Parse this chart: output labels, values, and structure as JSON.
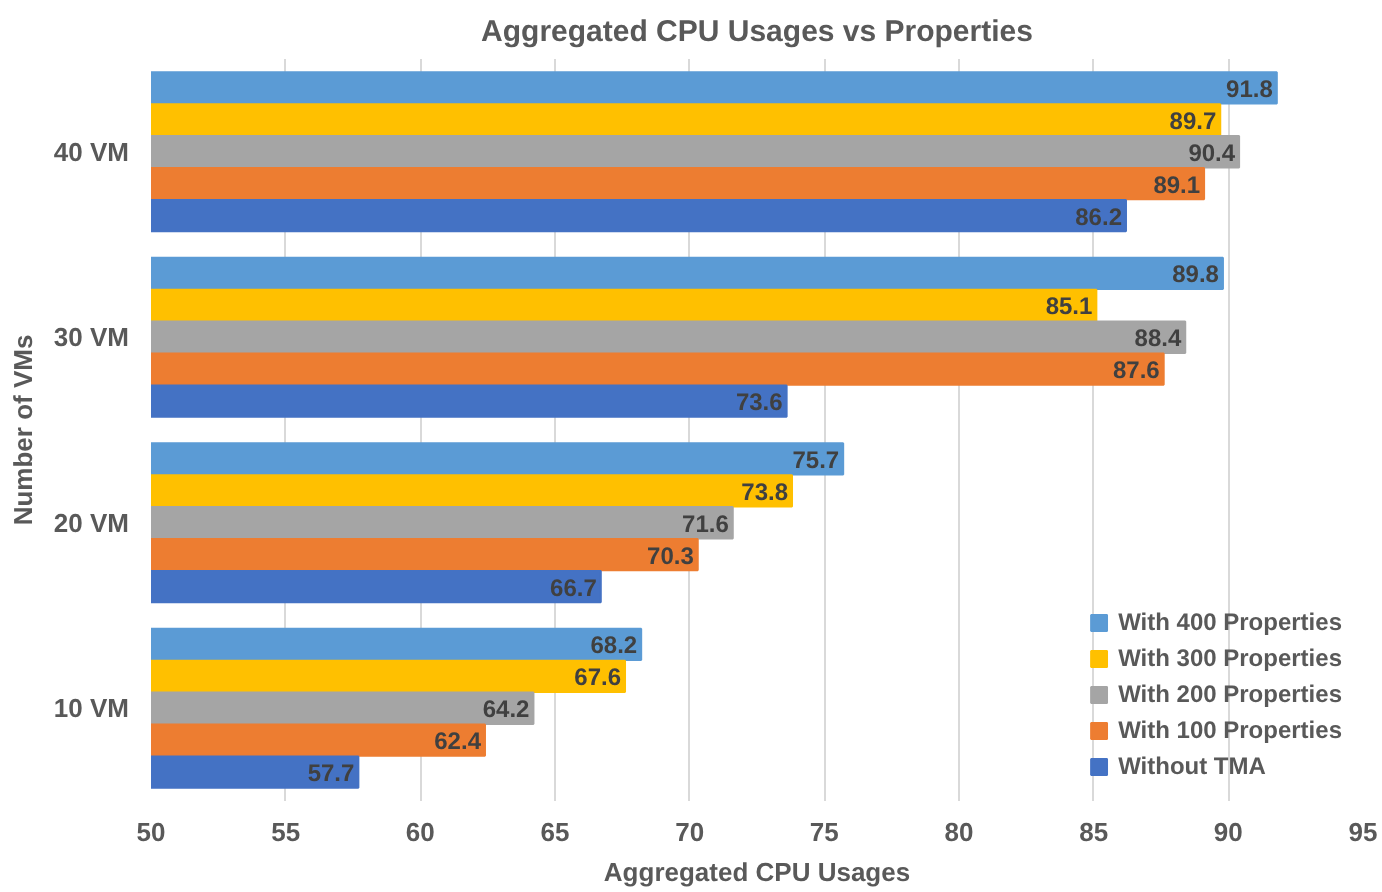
{
  "chart_data": {
    "type": "bar",
    "orientation": "horizontal",
    "title": "Aggregated CPU Usages vs Properties",
    "xlabel": "Aggregated CPU Usages",
    "ylabel": "Number of VMs",
    "categories": [
      "40 VM",
      "30 VM",
      "20 VM",
      "10 VM"
    ],
    "series": [
      {
        "name": "With 400 Properties",
        "color": "#5b9bd5",
        "values": [
          91.8,
          89.8,
          75.7,
          68.2
        ]
      },
      {
        "name": "With 300 Properties",
        "color": "#ffc000",
        "values": [
          89.7,
          85.1,
          73.8,
          67.6
        ]
      },
      {
        "name": "With 200 Properties",
        "color": "#a5a5a5",
        "values": [
          90.4,
          88.4,
          71.6,
          64.2
        ]
      },
      {
        "name": "With 100 Properties",
        "color": "#ed7d31",
        "values": [
          89.1,
          87.6,
          70.3,
          62.4
        ]
      },
      {
        "name": "Without TMA",
        "color": "#4472c4",
        "values": [
          86.2,
          73.6,
          66.7,
          57.7
        ]
      }
    ],
    "xlim": [
      50,
      95
    ],
    "xticks": [
      50,
      55,
      60,
      65,
      70,
      75,
      80,
      85,
      90,
      95
    ],
    "grid": "x",
    "legend": "bottom right",
    "data_labels": true
  }
}
